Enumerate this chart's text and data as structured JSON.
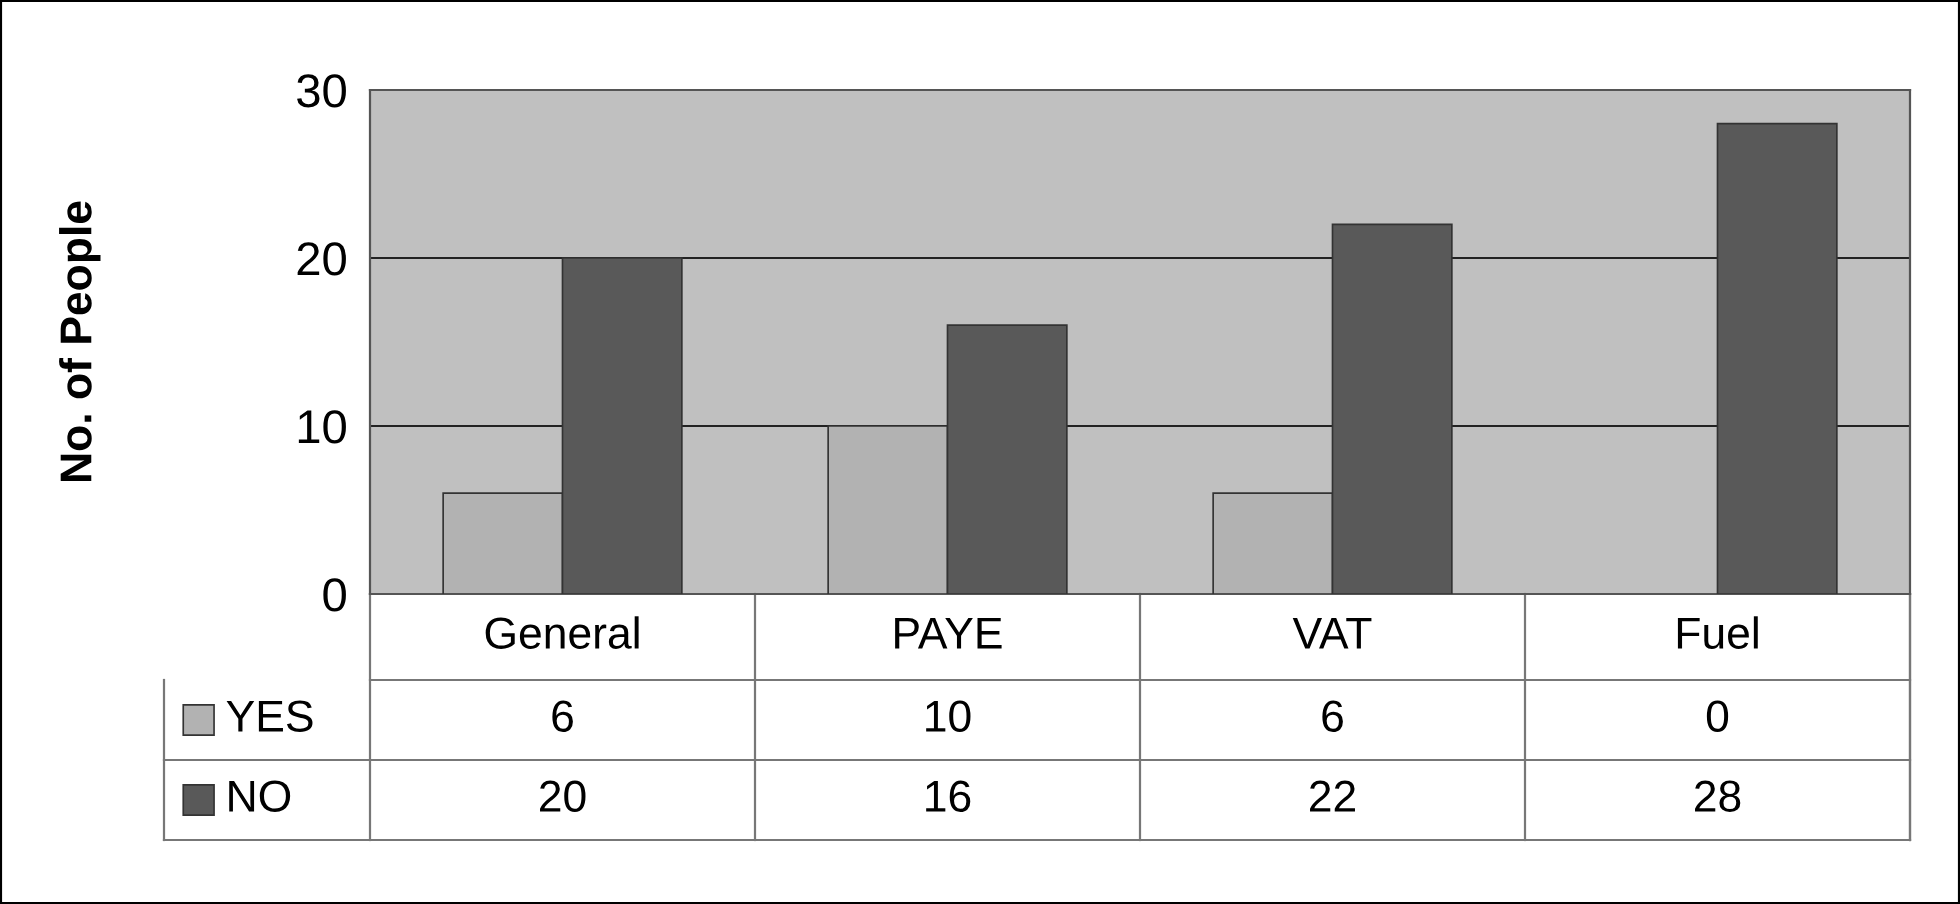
{
  "chart_data": {
    "type": "bar",
    "ylabel": "No. of People",
    "categories": [
      "General",
      "PAYE",
      "VAT",
      "Fuel"
    ],
    "series": [
      {
        "name": "YES",
        "color": "#b2b2b2",
        "values": [
          6,
          10,
          6,
          0
        ]
      },
      {
        "name": "NO",
        "color": "#595959",
        "values": [
          20,
          16,
          22,
          28
        ]
      }
    ],
    "ylim": [
      0,
      30
    ],
    "yticks": [
      0,
      10,
      20,
      30
    ],
    "grid": "y",
    "data_labels": true,
    "legend": "bottom"
  }
}
